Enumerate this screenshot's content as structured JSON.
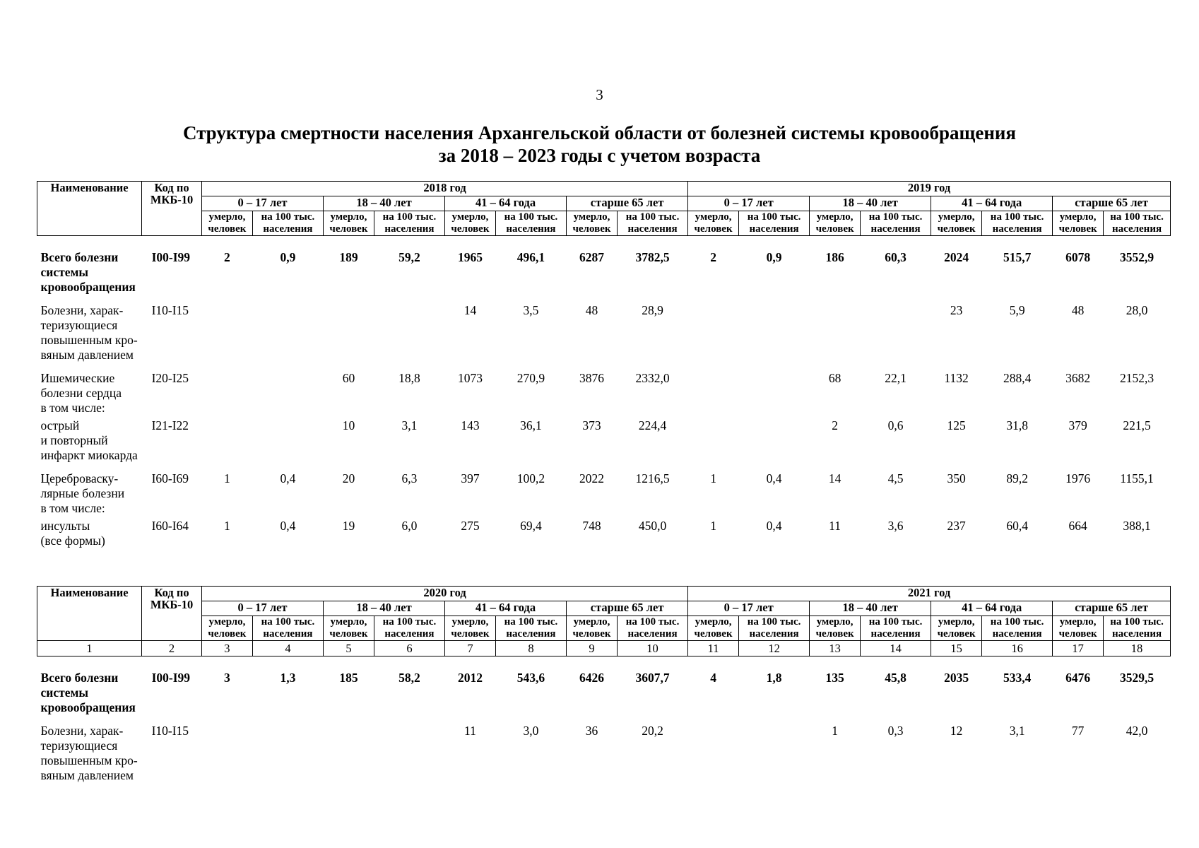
{
  "page_number": "3",
  "title_line1": "Структура смертности населения Архангельской области от болезней системы кровообращения",
  "title_line2": "за 2018 – 2023 годы с учетом возраста",
  "header": {
    "name": "Наименование",
    "code": "Код по МКБ-10",
    "ages": [
      "0 – 17 лет",
      "18 – 40 лет",
      "41 – 64 года",
      "старше 65 лет"
    ],
    "sub_died": "умерло, человек",
    "sub_rate": "на 100 тыс. населения"
  },
  "column_numbers": [
    "1",
    "2",
    "3",
    "4",
    "5",
    "6",
    "7",
    "8",
    "9",
    "10",
    "11",
    "12",
    "13",
    "14",
    "15",
    "16",
    "17",
    "18"
  ],
  "table1": {
    "years": [
      "2018 год",
      "2019 год"
    ],
    "rows": [
      {
        "name": "Всего болезни системы кровообращения",
        "code": "I00-I99",
        "bold": true,
        "values": [
          "2",
          "0,9",
          "189",
          "59,2",
          "1965",
          "496,1",
          "6287",
          "3782,5",
          "2",
          "0,9",
          "186",
          "60,3",
          "2024",
          "515,7",
          "6078",
          "3552,9"
        ]
      },
      {
        "name": "Болезни, харак-теризующиеся повышенным кро-вяным давлением",
        "code": "I10-I15",
        "values": [
          "",
          "",
          "",
          "",
          "14",
          "3,5",
          "48",
          "28,9",
          "",
          "",
          "",
          "",
          "23",
          "5,9",
          "48",
          "28,0"
        ]
      },
      {
        "name": "Ишемические болезни сердца в том числе:",
        "code": "I20-I25",
        "values": [
          "",
          "",
          "60",
          "18,8",
          "1073",
          "270,9",
          "3876",
          "2332,0",
          "",
          "",
          "68",
          "22,1",
          "1132",
          "288,4",
          "3682",
          "2152,3"
        ]
      },
      {
        "name": "острый и повторный инфаркт миокарда",
        "code": "I21-I22",
        "values": [
          "",
          "",
          "10",
          "3,1",
          "143",
          "36,1",
          "373",
          "224,4",
          "",
          "",
          "2",
          "0,6",
          "125",
          "31,8",
          "379",
          "221,5"
        ]
      },
      {
        "name": "Цереброваску-лярные болезни в том числе:",
        "code": "I60-I69",
        "values": [
          "1",
          "0,4",
          "20",
          "6,3",
          "397",
          "100,2",
          "2022",
          "1216,5",
          "1",
          "0,4",
          "14",
          "4,5",
          "350",
          "89,2",
          "1976",
          "1155,1"
        ]
      },
      {
        "name": "инсульты (все формы)",
        "code": "I60-I64",
        "values": [
          "1",
          "0,4",
          "19",
          "6,0",
          "275",
          "69,4",
          "748",
          "450,0",
          "1",
          "0,4",
          "11",
          "3,6",
          "237",
          "60,4",
          "664",
          "388,1"
        ]
      }
    ]
  },
  "table2": {
    "years": [
      "2020 год",
      "2021 год"
    ],
    "rows": [
      {
        "name": "Всего болезни системы кровообращения",
        "code": "I00-I99",
        "bold": true,
        "values": [
          "3",
          "1,3",
          "185",
          "58,2",
          "2012",
          "543,6",
          "6426",
          "3607,7",
          "4",
          "1,8",
          "135",
          "45,8",
          "2035",
          "533,4",
          "6476",
          "3529,5"
        ]
      },
      {
        "name": "Болезни, харак-теризующиеся повышенным кро-вяным давлением",
        "code": "I10-I15",
        "values": [
          "",
          "",
          "",
          "",
          "11",
          "3,0",
          "36",
          "20,2",
          "",
          "",
          "1",
          "0,3",
          "12",
          "3,1",
          "77",
          "42,0"
        ]
      }
    ]
  }
}
